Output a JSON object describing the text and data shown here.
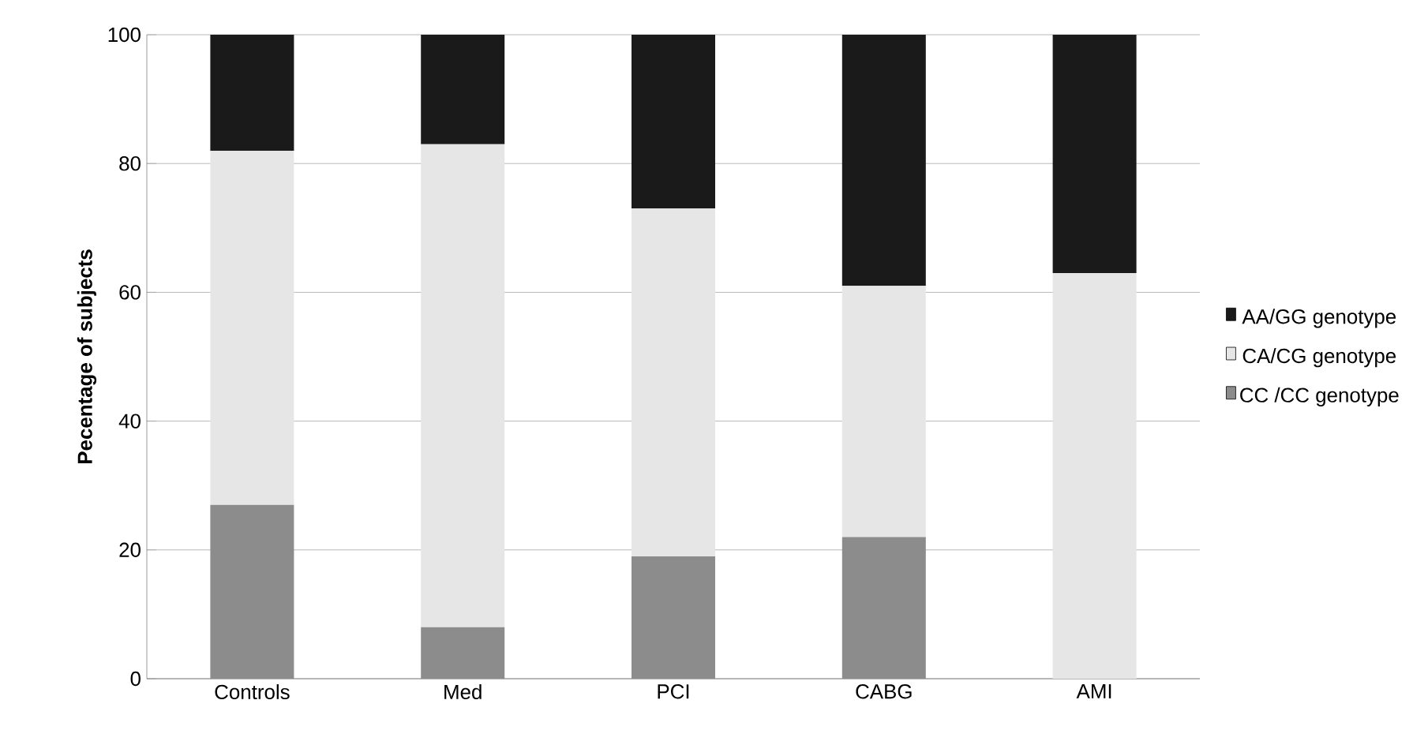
{
  "chart_data": {
    "type": "bar",
    "stacked": true,
    "ylabel": "Pecentage of subjects",
    "categories": [
      "Controls",
      "Med",
      "PCI",
      "CABG",
      "AMI"
    ],
    "series": [
      {
        "name": "CC /CC genotype",
        "color": "#8c8c8c",
        "values": [
          27,
          8,
          19,
          22,
          0
        ]
      },
      {
        "name": "CA/CG genotype",
        "color": "#e6e6e6",
        "values": [
          55,
          75,
          54,
          39,
          63
        ]
      },
      {
        "name": "AA/GG genotype",
        "color": "#1a1a1a",
        "values": [
          18,
          17,
          27,
          39,
          37
        ]
      }
    ],
    "ylim": [
      0,
      100
    ],
    "yticks": [
      0,
      20,
      40,
      60,
      80,
      100
    ],
    "grid": "y",
    "legend": "right"
  }
}
